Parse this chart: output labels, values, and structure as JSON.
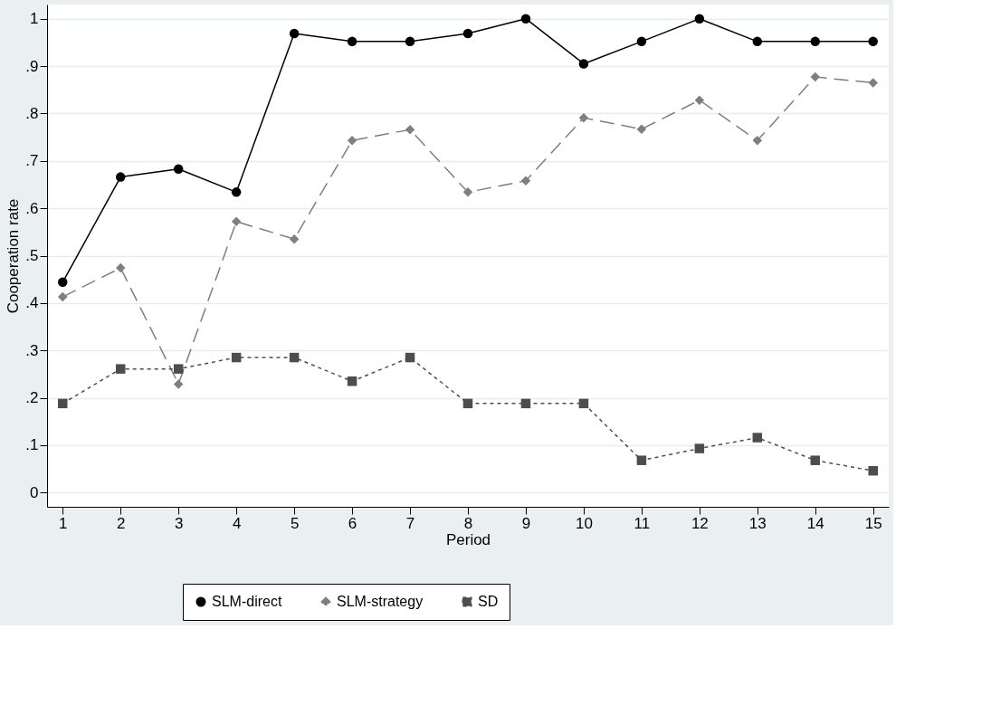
{
  "chart_data": {
    "type": "line",
    "xlabel": "Period",
    "ylabel": "Cooperation rate",
    "x": [
      1,
      2,
      3,
      4,
      5,
      6,
      7,
      8,
      9,
      10,
      11,
      12,
      13,
      14,
      15
    ],
    "series": [
      {
        "name": "SLM-direct",
        "color": "#000000",
        "marker": "circle",
        "line_style": "solid",
        "values": [
          0.444,
          0.666,
          0.683,
          0.634,
          0.969,
          0.952,
          0.952,
          0.969,
          1.0,
          0.905,
          0.952,
          1.0,
          0.952,
          0.952,
          0.952
        ]
      },
      {
        "name": "SLM-strategy",
        "color": "#7f7f7f",
        "marker": "diamond",
        "line_style": "dashed",
        "values": [
          0.413,
          0.474,
          0.229,
          0.572,
          0.535,
          0.743,
          0.766,
          0.634,
          0.658,
          0.791,
          0.767,
          0.828,
          0.743,
          0.877,
          0.865
        ]
      },
      {
        "name": "SD",
        "color": "#4d4d4d",
        "marker": "square",
        "line_style": "dotted",
        "values": [
          0.188,
          0.261,
          0.261,
          0.285,
          0.285,
          0.235,
          0.285,
          0.188,
          0.188,
          0.188,
          0.068,
          0.093,
          0.116,
          0.068,
          0.046
        ]
      }
    ],
    "xlim": [
      0.73,
      15.27
    ],
    "xticks": [
      1,
      2,
      3,
      4,
      5,
      6,
      7,
      8,
      9,
      10,
      11,
      12,
      13,
      14,
      15
    ],
    "ylim": [
      -0.03,
      1.03
    ],
    "yticks": [
      {
        "value": 0,
        "label": "0"
      },
      {
        "value": 0.1,
        "label": ".1"
      },
      {
        "value": 0.2,
        "label": ".2"
      },
      {
        "value": 0.3,
        "label": ".3"
      },
      {
        "value": 0.4,
        "label": ".4"
      },
      {
        "value": 0.5,
        "label": ".5"
      },
      {
        "value": 0.6,
        "label": ".6"
      },
      {
        "value": 0.7,
        "label": ".7"
      },
      {
        "value": 0.8,
        "label": ".8"
      },
      {
        "value": 0.9,
        "label": ".9"
      },
      {
        "value": 1,
        "label": "1"
      }
    ],
    "grid": "y",
    "legend": "bottom"
  }
}
